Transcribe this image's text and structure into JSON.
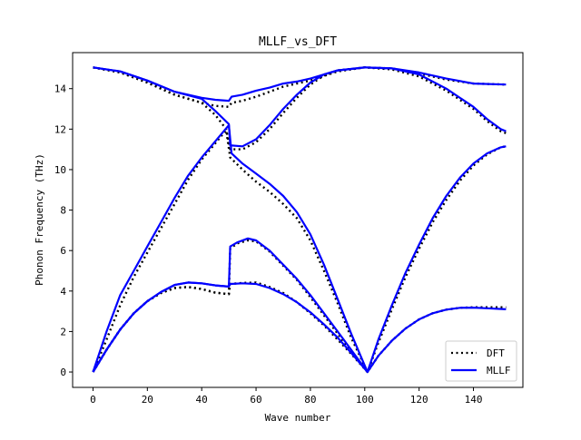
{
  "chart_data": {
    "type": "line",
    "title": "MLLF_vs_DFT",
    "xlabel": "Wave number",
    "ylabel": "Phonon Frequency (THz)",
    "xlim": [
      -7.5,
      158.2
    ],
    "ylim": [
      -0.76,
      15.78
    ],
    "xticks": [
      0,
      20,
      40,
      60,
      80,
      100,
      120,
      140
    ],
    "yticks": [
      0,
      2,
      4,
      6,
      8,
      10,
      12,
      14
    ],
    "grid": false,
    "legend_position": "lower-right",
    "series": [
      {
        "name": "DFT",
        "color": "#000000",
        "style": "dotted",
        "bands": [
          [
            [
              0,
              0
            ],
            [
              5,
              1.1
            ],
            [
              10,
              2.1
            ],
            [
              15,
              2.9
            ],
            [
              20,
              3.5
            ],
            [
              25,
              3.9
            ],
            [
              30,
              4.15
            ],
            [
              35,
              4.2
            ],
            [
              40,
              4.1
            ],
            [
              45,
              3.92
            ],
            [
              50,
              3.85
            ],
            [
              50.5,
              4.35
            ],
            [
              55,
              4.4
            ],
            [
              60,
              4.42
            ],
            [
              65,
              4.2
            ],
            [
              70,
              3.9
            ],
            [
              75,
              3.45
            ],
            [
              80,
              2.9
            ],
            [
              85,
              2.3
            ],
            [
              90,
              1.6
            ],
            [
              95,
              0.9
            ],
            [
              101,
              0
            ],
            [
              105,
              0.8
            ],
            [
              110,
              1.55
            ],
            [
              115,
              2.15
            ],
            [
              120,
              2.6
            ],
            [
              125,
              2.9
            ],
            [
              130,
              3.08
            ],
            [
              135,
              3.17
            ],
            [
              140,
              3.2
            ],
            [
              145,
              3.2
            ],
            [
              152,
              3.2
            ]
          ],
          [
            [
              0,
              0
            ],
            [
              5,
              1.1
            ],
            [
              10,
              2.1
            ],
            [
              15,
              2.9
            ],
            [
              20,
              3.5
            ],
            [
              25,
              3.9
            ],
            [
              30,
              4.15
            ],
            [
              35,
              4.2
            ],
            [
              40,
              4.1
            ],
            [
              45,
              3.92
            ],
            [
              50,
              3.85
            ],
            [
              50.5,
              6.1
            ],
            [
              53,
              6.35
            ],
            [
              57,
              6.5
            ],
            [
              60,
              6.45
            ],
            [
              65,
              5.95
            ],
            [
              70,
              5.25
            ],
            [
              75,
              4.55
            ],
            [
              80,
              3.7
            ],
            [
              85,
              2.8
            ],
            [
              90,
              1.9
            ],
            [
              95,
              1.0
            ],
            [
              101,
              0
            ]
          ],
          [
            [
              0,
              0
            ],
            [
              5,
              1.6
            ],
            [
              10,
              3.3
            ],
            [
              15,
              4.7
            ],
            [
              20,
              5.9
            ],
            [
              25,
              7.1
            ],
            [
              30,
              8.3
            ],
            [
              35,
              9.5
            ],
            [
              40,
              10.5
            ],
            [
              45,
              11.3
            ],
            [
              49,
              11.95
            ],
            [
              50.5,
              10.6
            ],
            [
              55,
              10.0
            ],
            [
              60,
              9.4
            ],
            [
              65,
              8.9
            ],
            [
              70,
              8.3
            ],
            [
              75,
              7.6
            ],
            [
              80,
              6.5
            ],
            [
              85,
              5.0
            ],
            [
              90,
              3.4
            ],
            [
              95,
              1.7
            ],
            [
              101,
              0
            ],
            [
              105,
              1.45
            ],
            [
              110,
              3.1
            ],
            [
              115,
              4.7
            ],
            [
              120,
              6.1
            ],
            [
              125,
              7.4
            ],
            [
              130,
              8.5
            ],
            [
              135,
              9.45
            ],
            [
              140,
              10.2
            ],
            [
              145,
              10.75
            ],
            [
              150,
              11.1
            ],
            [
              152,
              11.15
            ]
          ],
          [
            [
              0,
              15.05
            ],
            [
              10,
              14.8
            ],
            [
              20,
              14.3
            ],
            [
              30,
              13.7
            ],
            [
              40,
              13.3
            ],
            [
              45,
              12.7
            ],
            [
              49,
              12.0
            ],
            [
              50.5,
              11.0
            ],
            [
              55,
              11.0
            ],
            [
              60,
              11.35
            ],
            [
              65,
              12.0
            ],
            [
              70,
              12.8
            ],
            [
              75,
              13.55
            ],
            [
              80,
              14.2
            ],
            [
              85,
              14.65
            ],
            [
              90,
              14.9
            ],
            [
              100,
              15.05
            ],
            [
              110,
              14.95
            ],
            [
              120,
              14.6
            ],
            [
              130,
              13.9
            ],
            [
              140,
              13.0
            ],
            [
              145,
              12.4
            ],
            [
              150,
              11.9
            ],
            [
              152,
              11.8
            ]
          ],
          [
            [
              0,
              15.05
            ],
            [
              10,
              14.8
            ],
            [
              20,
              14.3
            ],
            [
              30,
              13.7
            ],
            [
              40,
              13.3
            ],
            [
              45,
              13.15
            ],
            [
              50,
              13.1
            ],
            [
              51,
              13.3
            ],
            [
              55,
              13.4
            ],
            [
              60,
              13.6
            ],
            [
              65,
              13.85
            ],
            [
              70,
              14.1
            ],
            [
              75,
              14.25
            ],
            [
              80,
              14.4
            ],
            [
              90,
              14.85
            ],
            [
              100,
              15.05
            ],
            [
              110,
              15.0
            ],
            [
              120,
              14.75
            ],
            [
              130,
              14.45
            ],
            [
              140,
              14.25
            ],
            [
              152,
              14.2
            ]
          ]
        ]
      },
      {
        "name": "MLLF",
        "color": "#0000ff",
        "style": "solid",
        "bands": [
          [
            [
              0,
              0
            ],
            [
              5,
              1.1
            ],
            [
              10,
              2.1
            ],
            [
              15,
              2.9
            ],
            [
              20,
              3.5
            ],
            [
              25,
              3.95
            ],
            [
              30,
              4.3
            ],
            [
              35,
              4.42
            ],
            [
              40,
              4.38
            ],
            [
              45,
              4.28
            ],
            [
              50,
              4.22
            ],
            [
              50.5,
              4.35
            ],
            [
              55,
              4.38
            ],
            [
              60,
              4.35
            ],
            [
              65,
              4.15
            ],
            [
              70,
              3.85
            ],
            [
              75,
              3.45
            ],
            [
              80,
              2.95
            ],
            [
              85,
              2.35
            ],
            [
              90,
              1.7
            ],
            [
              95,
              0.95
            ],
            [
              101,
              0
            ],
            [
              105,
              0.8
            ],
            [
              110,
              1.55
            ],
            [
              115,
              2.15
            ],
            [
              120,
              2.6
            ],
            [
              125,
              2.9
            ],
            [
              130,
              3.08
            ],
            [
              135,
              3.17
            ],
            [
              140,
              3.18
            ],
            [
              145,
              3.15
            ],
            [
              152,
              3.1
            ]
          ],
          [
            [
              0,
              0
            ],
            [
              5,
              1.1
            ],
            [
              10,
              2.1
            ],
            [
              15,
              2.9
            ],
            [
              20,
              3.5
            ],
            [
              25,
              3.95
            ],
            [
              30,
              4.3
            ],
            [
              35,
              4.42
            ],
            [
              40,
              4.38
            ],
            [
              45,
              4.28
            ],
            [
              50,
              4.22
            ],
            [
              50.5,
              6.2
            ],
            [
              53,
              6.4
            ],
            [
              57,
              6.6
            ],
            [
              60,
              6.5
            ],
            [
              65,
              6.0
            ],
            [
              70,
              5.3
            ],
            [
              75,
              4.6
            ],
            [
              80,
              3.8
            ],
            [
              85,
              2.9
            ],
            [
              90,
              2.0
            ],
            [
              95,
              1.1
            ],
            [
              101,
              0
            ]
          ],
          [
            [
              0,
              0
            ],
            [
              5,
              2.0
            ],
            [
              10,
              3.8
            ],
            [
              15,
              5.0
            ],
            [
              20,
              6.2
            ],
            [
              25,
              7.4
            ],
            [
              30,
              8.6
            ],
            [
              35,
              9.7
            ],
            [
              40,
              10.6
            ],
            [
              45,
              11.4
            ],
            [
              50,
              12.2
            ],
            [
              51,
              10.8
            ],
            [
              55,
              10.3
            ],
            [
              60,
              9.8
            ],
            [
              65,
              9.3
            ],
            [
              70,
              8.7
            ],
            [
              75,
              7.9
            ],
            [
              80,
              6.8
            ],
            [
              85,
              5.3
            ],
            [
              90,
              3.6
            ],
            [
              95,
              1.9
            ],
            [
              101,
              0
            ],
            [
              105,
              1.6
            ],
            [
              110,
              3.3
            ],
            [
              115,
              4.9
            ],
            [
              120,
              6.3
            ],
            [
              125,
              7.6
            ],
            [
              130,
              8.7
            ],
            [
              135,
              9.6
            ],
            [
              140,
              10.3
            ],
            [
              145,
              10.8
            ],
            [
              150,
              11.1
            ],
            [
              152,
              11.15
            ]
          ],
          [
            [
              0,
              15.05
            ],
            [
              10,
              14.85
            ],
            [
              20,
              14.4
            ],
            [
              30,
              13.85
            ],
            [
              40,
              13.5
            ],
            [
              45,
              12.9
            ],
            [
              50,
              12.25
            ],
            [
              50.5,
              11.2
            ],
            [
              55,
              11.15
            ],
            [
              60,
              11.5
            ],
            [
              65,
              12.2
            ],
            [
              70,
              13.0
            ],
            [
              75,
              13.7
            ],
            [
              80,
              14.3
            ],
            [
              85,
              14.7
            ],
            [
              90,
              14.9
            ],
            [
              100,
              15.05
            ],
            [
              110,
              15.0
            ],
            [
              120,
              14.7
            ],
            [
              130,
              14.0
            ],
            [
              140,
              13.1
            ],
            [
              145,
              12.5
            ],
            [
              150,
              12.0
            ],
            [
              152,
              11.9
            ]
          ],
          [
            [
              0,
              15.05
            ],
            [
              10,
              14.85
            ],
            [
              20,
              14.4
            ],
            [
              30,
              13.85
            ],
            [
              40,
              13.55
            ],
            [
              45,
              13.45
            ],
            [
              50,
              13.4
            ],
            [
              51,
              13.6
            ],
            [
              55,
              13.7
            ],
            [
              60,
              13.9
            ],
            [
              65,
              14.05
            ],
            [
              70,
              14.25
            ],
            [
              75,
              14.35
            ],
            [
              80,
              14.5
            ],
            [
              90,
              14.9
            ],
            [
              100,
              15.05
            ],
            [
              110,
              15.0
            ],
            [
              120,
              14.8
            ],
            [
              130,
              14.5
            ],
            [
              140,
              14.25
            ],
            [
              152,
              14.2
            ]
          ]
        ]
      }
    ]
  }
}
